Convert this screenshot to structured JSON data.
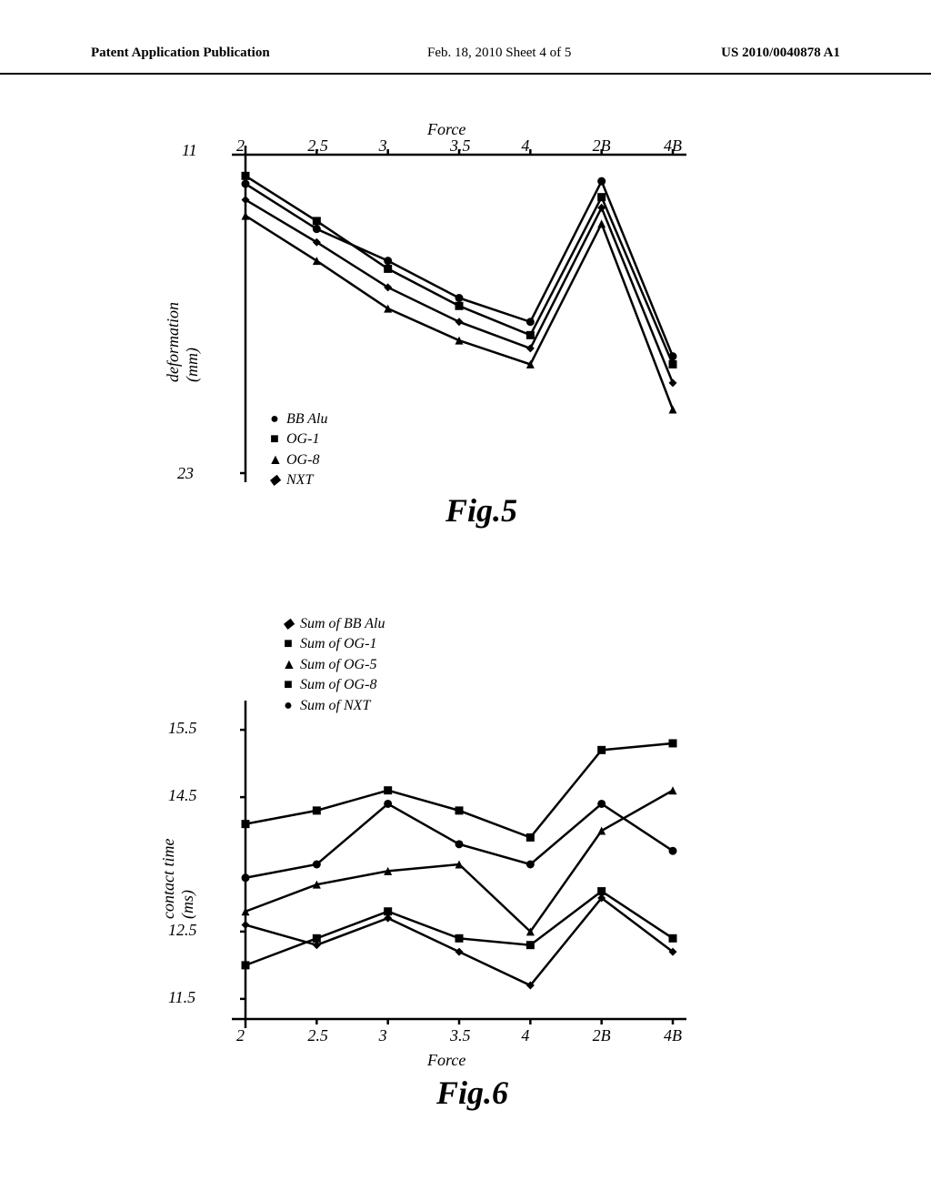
{
  "header": {
    "left": "Patent Application Publication",
    "mid": "Feb. 18, 2010  Sheet 4 of 5",
    "right": "US 2010/0040878 A1"
  },
  "fig5": {
    "type": "line",
    "caption": "Fig.5",
    "x_categories": [
      "2",
      "2.5",
      "3",
      "3.5",
      "4",
      "2B",
      "4B"
    ],
    "x_label": "Force",
    "y_label": "deformation\n(mm)",
    "y_top_label": "11",
    "y_bottom_label": "23",
    "ylim": [
      11,
      23
    ],
    "axis_color": "#000000",
    "line_width": 2.5,
    "series": [
      {
        "name": "BB Alu",
        "marker": "circle",
        "color": "#000000",
        "values": [
          12.1,
          13.8,
          15.0,
          16.4,
          17.3,
          12.0,
          18.6
        ]
      },
      {
        "name": "OG-1",
        "marker": "square",
        "color": "#000000",
        "values": [
          11.8,
          13.5,
          15.3,
          16.7,
          17.8,
          12.6,
          18.9
        ]
      },
      {
        "name": "OG-8",
        "marker": "triangle",
        "color": "#000000",
        "values": [
          13.3,
          15.0,
          16.8,
          18.0,
          18.9,
          13.6,
          20.6
        ]
      },
      {
        "name": "NXT",
        "marker": "diamond",
        "color": "#000000",
        "values": [
          12.7,
          14.3,
          16.0,
          17.3,
          18.3,
          13.0,
          19.6
        ]
      }
    ],
    "legend": [
      {
        "marker": "circle",
        "label": "BB  Alu"
      },
      {
        "marker": "square",
        "label": "OG-1"
      },
      {
        "marker": "triangle",
        "label": "OG-8"
      },
      {
        "marker": "diamond",
        "label": "NXT"
      }
    ]
  },
  "fig6": {
    "type": "line",
    "caption": "Fig.6",
    "x_categories": [
      "2",
      "2.5",
      "3",
      "3.5",
      "4",
      "2B",
      "4B"
    ],
    "x_label": "Force",
    "y_label": "contact time\n(ms)",
    "y_ticks": [
      "15.5",
      "14.5",
      "12.5",
      "11.5"
    ],
    "y_tick_values": [
      15.5,
      14.5,
      12.5,
      11.5
    ],
    "ylim": [
      11.2,
      15.8
    ],
    "axis_color": "#000000",
    "line_width": 2.5,
    "series": [
      {
        "name": "Sum of BB Alu",
        "marker": "diamond",
        "color": "#000000",
        "values": [
          12.6,
          12.3,
          12.7,
          12.2,
          11.7,
          13.0,
          12.2
        ]
      },
      {
        "name": "Sum of OG-1",
        "marker": "square",
        "color": "#000000",
        "values": [
          14.1,
          14.3,
          14.6,
          14.3,
          13.9,
          15.2,
          15.3
        ]
      },
      {
        "name": "Sum of OG-5",
        "marker": "triangle",
        "color": "#000000",
        "values": [
          12.8,
          13.2,
          13.4,
          13.5,
          12.5,
          14.0,
          14.6
        ]
      },
      {
        "name": "Sum of OG-8",
        "marker": "square",
        "color": "#000000",
        "values": [
          12.0,
          12.4,
          12.8,
          12.4,
          12.3,
          13.1,
          12.4
        ]
      },
      {
        "name": "Sum of NXT",
        "marker": "circle",
        "color": "#000000",
        "values": [
          13.3,
          13.5,
          14.4,
          13.8,
          13.5,
          14.4,
          13.7
        ]
      }
    ],
    "legend": [
      {
        "marker": "diamond",
        "label": "Sum   of   BB  Alu"
      },
      {
        "marker": "square",
        "label": "Sum   of   OG-1"
      },
      {
        "marker": "triangle",
        "label": "Sum   of   OG-5"
      },
      {
        "marker": "square",
        "label": "Sum   of   OG-8"
      },
      {
        "marker": "circle",
        "label": "Sum   of   NXT"
      }
    ]
  }
}
